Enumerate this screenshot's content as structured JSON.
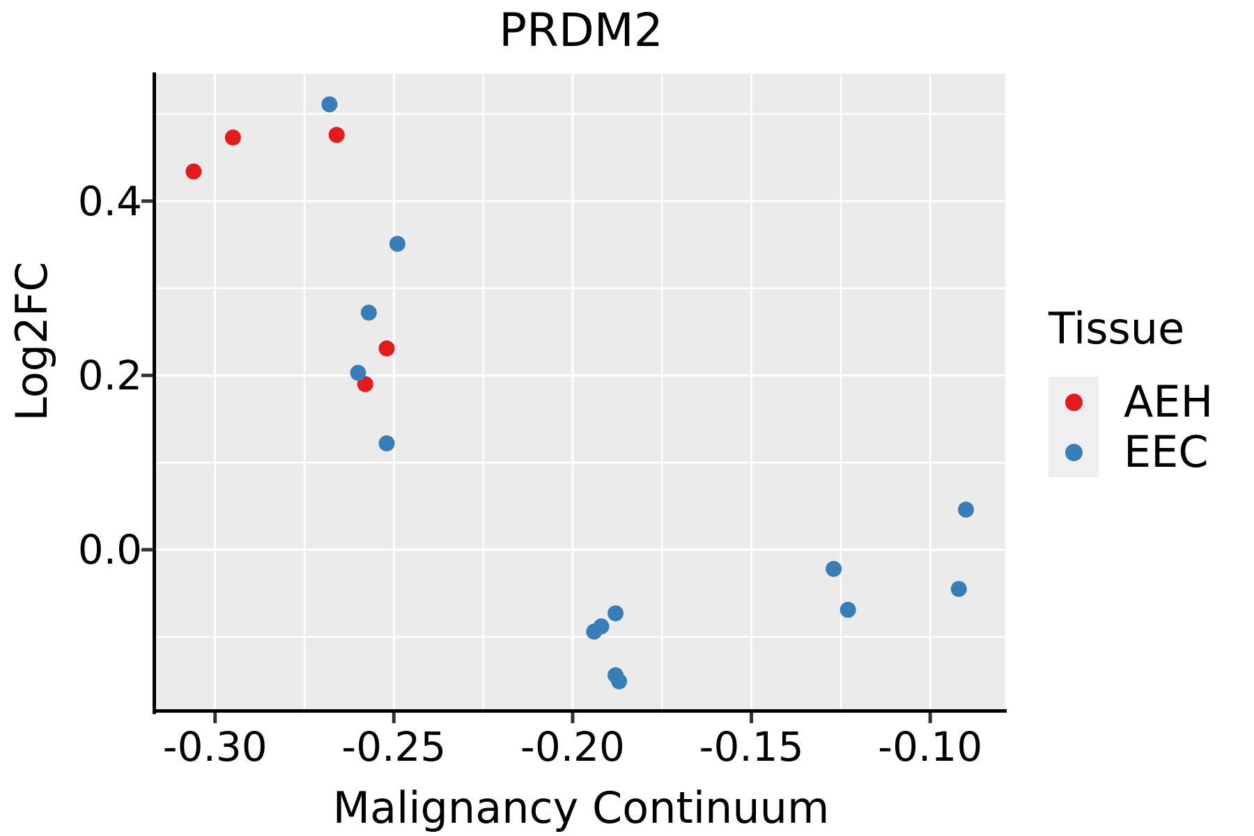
{
  "chart_data": {
    "type": "scatter",
    "title": "PRDM2",
    "xlabel": "Malignancy Continuum",
    "ylabel": "Log2FC",
    "xlim": [
      -0.3165,
      -0.079
    ],
    "ylim": [
      -0.183,
      0.546
    ],
    "x_ticks": {
      "values": [
        -0.3,
        -0.25,
        -0.2,
        -0.15,
        -0.1
      ],
      "labels": [
        "-0.30",
        "-0.25",
        "-0.20",
        "-0.15",
        "-0.10"
      ],
      "minor_gridlines": [
        -0.275,
        -0.225,
        -0.175,
        -0.125
      ]
    },
    "y_ticks": {
      "values": [
        0.0,
        0.2,
        0.4
      ],
      "labels": [
        "0.0",
        "0.2",
        "0.4"
      ],
      "minor_gridlines": [
        -0.1,
        0.1,
        0.3,
        0.5
      ]
    },
    "grid": "white major and minor gridlines on gray panel",
    "legend_position": "right",
    "legend": {
      "title": "Tissue",
      "items": [
        {
          "label": "AEH",
          "color": "#e41a1c"
        },
        {
          "label": "EEC",
          "color": "#377eb8"
        }
      ]
    },
    "series": [
      {
        "name": "AEH",
        "color": "#e41a1c",
        "points": [
          [
            -0.306,
            0.434
          ],
          [
            -0.295,
            0.473
          ],
          [
            -0.266,
            0.476
          ],
          [
            -0.252,
            0.231
          ],
          [
            -0.258,
            0.19
          ]
        ]
      },
      {
        "name": "EEC",
        "color": "#377eb8",
        "points": [
          [
            -0.268,
            0.511
          ],
          [
            -0.249,
            0.351
          ],
          [
            -0.257,
            0.272
          ],
          [
            -0.26,
            0.203
          ],
          [
            -0.252,
            0.122
          ],
          [
            -0.194,
            -0.094
          ],
          [
            -0.192,
            -0.088
          ],
          [
            -0.188,
            -0.073
          ],
          [
            -0.188,
            -0.144
          ],
          [
            -0.187,
            -0.151
          ],
          [
            -0.127,
            -0.022
          ],
          [
            -0.123,
            -0.069
          ],
          [
            -0.09,
            0.046
          ],
          [
            -0.092,
            -0.045
          ]
        ]
      }
    ],
    "style": {
      "panel_bg": "#ebebeb",
      "gridline_color": "#ffffff",
      "axis_line_color": "#000000",
      "tick_mark_color": "#333333",
      "legend_key_bg": "#efefef",
      "point_radius": 11.5
    }
  }
}
